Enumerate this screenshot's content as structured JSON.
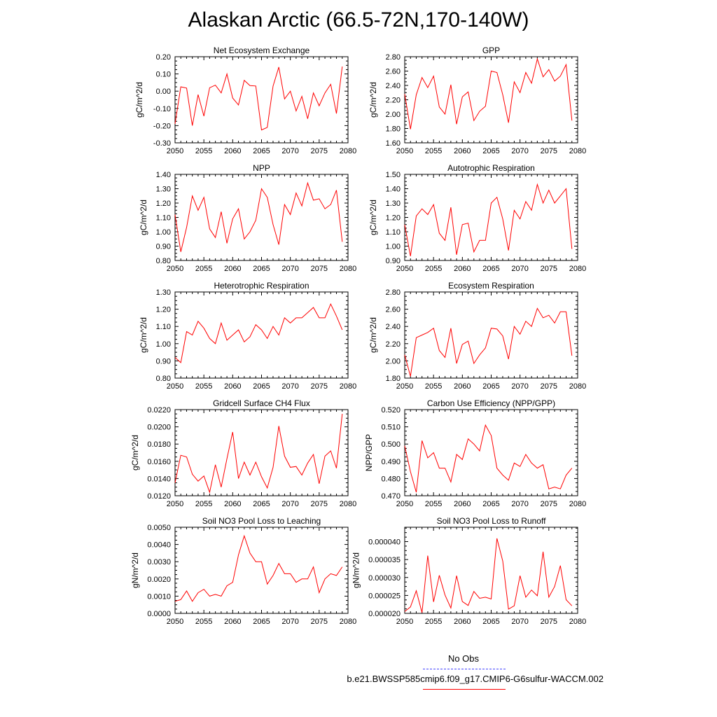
{
  "page_title": "Alaskan Arctic (66.5-72N,170-140W)",
  "legend": {
    "obs_label": "No Obs",
    "obs_color": "#4040ff",
    "case_label": "b.e21.BWSSP585cmip6.f09_g17.CMIP6-G6sulfur-WACCM.002",
    "case_color": "#ff0000"
  },
  "chart_data": [
    {
      "type": "line",
      "title": "Net Ecosystem Exchange",
      "xlabel": "",
      "ylabel": "gC/m^2/d",
      "xlim": [
        2050,
        2080
      ],
      "ylim": [
        -0.3,
        0.2
      ],
      "xticks": [
        "2050",
        "2055",
        "2060",
        "2065",
        "2070",
        "2075",
        "2080"
      ],
      "yticks": [
        "-0.30",
        "-0.20",
        "-0.10",
        "0.00",
        "0.10",
        "0.20"
      ],
      "series": [
        {
          "color": "#ff0000",
          "x": [
            2050,
            2051,
            2052,
            2053,
            2054,
            2055,
            2056,
            2057,
            2058,
            2059,
            2060,
            2061,
            2062,
            2063,
            2064,
            2065,
            2066,
            2067,
            2068,
            2069,
            2070,
            2071,
            2072,
            2073,
            2074,
            2075,
            2076,
            2077,
            2078,
            2079
          ],
          "y": [
            -0.19,
            0.025,
            0.018,
            -0.2,
            -0.02,
            -0.145,
            0.02,
            0.035,
            -0.01,
            0.1,
            -0.04,
            -0.08,
            0.063,
            0.032,
            0.03,
            -0.225,
            -0.21,
            0.03,
            0.14,
            -0.045,
            0.0,
            -0.115,
            -0.03,
            -0.16,
            -0.01,
            -0.085,
            -0.01,
            0.04,
            -0.13,
            0.143
          ]
        }
      ]
    },
    {
      "type": "line",
      "title": "GPP",
      "xlabel": "",
      "ylabel": "gC/m^2/d",
      "xlim": [
        2050,
        2080
      ],
      "ylim": [
        1.6,
        2.8
      ],
      "xticks": [
        "2050",
        "2055",
        "2060",
        "2065",
        "2070",
        "2075",
        "2080"
      ],
      "yticks": [
        "1.60",
        "1.80",
        "2.00",
        "2.20",
        "2.40",
        "2.60",
        "2.80"
      ],
      "series": [
        {
          "color": "#ff0000",
          "x": [
            2050,
            2051,
            2052,
            2053,
            2054,
            2055,
            2056,
            2057,
            2058,
            2059,
            2060,
            2061,
            2062,
            2063,
            2064,
            2065,
            2066,
            2067,
            2068,
            2069,
            2070,
            2071,
            2072,
            2073,
            2074,
            2075,
            2076,
            2077,
            2078,
            2079
          ],
          "y": [
            2.28,
            1.79,
            2.27,
            2.51,
            2.37,
            2.53,
            2.1,
            2.0,
            2.41,
            1.86,
            2.24,
            2.31,
            1.91,
            2.04,
            2.11,
            2.6,
            2.58,
            2.27,
            1.88,
            2.45,
            2.3,
            2.58,
            2.43,
            2.77,
            2.52,
            2.62,
            2.46,
            2.53,
            2.69,
            1.91
          ]
        }
      ]
    },
    {
      "type": "line",
      "title": "NPP",
      "xlabel": "",
      "ylabel": "gC/m^2/d",
      "xlim": [
        2050,
        2080
      ],
      "ylim": [
        0.8,
        1.4
      ],
      "xticks": [
        "2050",
        "2055",
        "2060",
        "2065",
        "2070",
        "2075",
        "2080"
      ],
      "yticks": [
        "0.80",
        "0.90",
        "1.00",
        "1.10",
        "1.20",
        "1.30",
        "1.40"
      ],
      "series": [
        {
          "color": "#ff0000",
          "x": [
            2050,
            2051,
            2052,
            2053,
            2054,
            2055,
            2056,
            2057,
            2058,
            2059,
            2060,
            2061,
            2062,
            2063,
            2064,
            2065,
            2066,
            2067,
            2068,
            2069,
            2070,
            2071,
            2072,
            2073,
            2074,
            2075,
            2076,
            2077,
            2078,
            2079
          ],
          "y": [
            1.12,
            0.86,
            1.03,
            1.25,
            1.15,
            1.24,
            1.02,
            0.96,
            1.14,
            0.92,
            1.09,
            1.16,
            0.95,
            1.0,
            1.08,
            1.3,
            1.24,
            1.05,
            0.91,
            1.19,
            1.12,
            1.27,
            1.18,
            1.34,
            1.22,
            1.23,
            1.16,
            1.19,
            1.29,
            0.93
          ]
        }
      ]
    },
    {
      "type": "line",
      "title": "Autotrophic Respiration",
      "xlabel": "",
      "ylabel": "gC/m^2/d",
      "xlim": [
        2050,
        2080
      ],
      "ylim": [
        0.9,
        1.5
      ],
      "xticks": [
        "2050",
        "2055",
        "2060",
        "2065",
        "2070",
        "2075",
        "2080"
      ],
      "yticks": [
        "0.90",
        "1.00",
        "1.10",
        "1.20",
        "1.30",
        "1.40",
        "1.50"
      ],
      "series": [
        {
          "color": "#ff0000",
          "x": [
            2050,
            2051,
            2052,
            2053,
            2054,
            2055,
            2056,
            2057,
            2058,
            2059,
            2060,
            2061,
            2062,
            2063,
            2064,
            2065,
            2066,
            2067,
            2068,
            2069,
            2070,
            2071,
            2072,
            2073,
            2074,
            2075,
            2076,
            2077,
            2078,
            2079
          ],
          "y": [
            1.15,
            0.93,
            1.21,
            1.26,
            1.22,
            1.29,
            1.09,
            1.04,
            1.27,
            0.94,
            1.15,
            1.16,
            0.96,
            1.04,
            1.04,
            1.3,
            1.34,
            1.19,
            0.97,
            1.25,
            1.19,
            1.31,
            1.25,
            1.43,
            1.3,
            1.39,
            1.3,
            1.35,
            1.4,
            0.98
          ]
        }
      ]
    },
    {
      "type": "line",
      "title": "Heterotrophic Respiration",
      "xlabel": "",
      "ylabel": "gC/m^2/d",
      "xlim": [
        2050,
        2080
      ],
      "ylim": [
        0.8,
        1.3
      ],
      "xticks": [
        "2050",
        "2055",
        "2060",
        "2065",
        "2070",
        "2075",
        "2080"
      ],
      "yticks": [
        "0.80",
        "0.90",
        "1.00",
        "1.10",
        "1.20",
        "1.30"
      ],
      "series": [
        {
          "color": "#ff0000",
          "x": [
            2050,
            2051,
            2052,
            2053,
            2054,
            2055,
            2056,
            2057,
            2058,
            2059,
            2060,
            2061,
            2062,
            2063,
            2064,
            2065,
            2066,
            2067,
            2068,
            2069,
            2070,
            2071,
            2072,
            2073,
            2074,
            2075,
            2076,
            2077,
            2078,
            2079
          ],
          "y": [
            0.92,
            0.89,
            1.07,
            1.05,
            1.13,
            1.09,
            1.03,
            1.0,
            1.12,
            1.02,
            1.05,
            1.08,
            1.01,
            1.04,
            1.11,
            1.08,
            1.03,
            1.1,
            1.05,
            1.15,
            1.12,
            1.15,
            1.15,
            1.18,
            1.21,
            1.15,
            1.15,
            1.23,
            1.16,
            1.08
          ]
        }
      ]
    },
    {
      "type": "line",
      "title": "Ecosystem Respiration",
      "xlabel": "",
      "ylabel": "gC/m^2/d",
      "xlim": [
        2050,
        2080
      ],
      "ylim": [
        1.8,
        2.8
      ],
      "xticks": [
        "2050",
        "2055",
        "2060",
        "2065",
        "2070",
        "2075",
        "2080"
      ],
      "yticks": [
        "1.80",
        "2.00",
        "2.20",
        "2.40",
        "2.60",
        "2.80"
      ],
      "series": [
        {
          "color": "#ff0000",
          "x": [
            2050,
            2051,
            2052,
            2053,
            2054,
            2055,
            2056,
            2057,
            2058,
            2059,
            2060,
            2061,
            2062,
            2063,
            2064,
            2065,
            2066,
            2067,
            2068,
            2069,
            2070,
            2071,
            2072,
            2073,
            2074,
            2075,
            2076,
            2077,
            2078,
            2079
          ],
          "y": [
            2.07,
            1.82,
            2.27,
            2.3,
            2.33,
            2.38,
            2.12,
            2.04,
            2.38,
            1.97,
            2.19,
            2.23,
            1.97,
            2.07,
            2.15,
            2.38,
            2.37,
            2.29,
            2.02,
            2.4,
            2.31,
            2.46,
            2.4,
            2.61,
            2.5,
            2.53,
            2.44,
            2.57,
            2.57,
            2.06
          ]
        }
      ]
    },
    {
      "type": "line",
      "title": "Gridcell Surface CH4 Flux",
      "xlabel": "",
      "ylabel": "gC/m^2/d",
      "xlim": [
        2050,
        2080
      ],
      "ylim": [
        0.012,
        0.022
      ],
      "xticks": [
        "2050",
        "2055",
        "2060",
        "2065",
        "2070",
        "2075",
        "2080"
      ],
      "yticks": [
        "0.0120",
        "0.0140",
        "0.0160",
        "0.0180",
        "0.0200",
        "0.0220"
      ],
      "series": [
        {
          "color": "#ff0000",
          "x": [
            2050,
            2051,
            2052,
            2053,
            2054,
            2055,
            2056,
            2057,
            2058,
            2059,
            2060,
            2061,
            2062,
            2063,
            2064,
            2065,
            2066,
            2067,
            2068,
            2069,
            2070,
            2071,
            2072,
            2073,
            2074,
            2075,
            2076,
            2077,
            2078,
            2079
          ],
          "y": [
            0.0135,
            0.0167,
            0.0165,
            0.0145,
            0.0137,
            0.0143,
            0.0124,
            0.0156,
            0.013,
            0.0163,
            0.0194,
            0.014,
            0.0159,
            0.0144,
            0.0159,
            0.0142,
            0.0129,
            0.0153,
            0.0201,
            0.0166,
            0.0153,
            0.0154,
            0.0144,
            0.0158,
            0.0168,
            0.0134,
            0.0166,
            0.0172,
            0.0152,
            0.0215
          ]
        }
      ]
    },
    {
      "type": "line",
      "title": "Carbon Use Efficiency (NPP/GPP)",
      "xlabel": "",
      "ylabel": "NPP/GPP",
      "xlim": [
        2050,
        2080
      ],
      "ylim": [
        0.47,
        0.52
      ],
      "xticks": [
        "2050",
        "2055",
        "2060",
        "2065",
        "2070",
        "2075",
        "2080"
      ],
      "yticks": [
        "0.470",
        "0.480",
        "0.490",
        "0.500",
        "0.510",
        "0.520"
      ],
      "series": [
        {
          "color": "#ff0000",
          "x": [
            2050,
            2051,
            2052,
            2053,
            2054,
            2055,
            2056,
            2057,
            2058,
            2059,
            2060,
            2061,
            2062,
            2063,
            2064,
            2065,
            2066,
            2067,
            2068,
            2069,
            2070,
            2071,
            2072,
            2073,
            2074,
            2075,
            2076,
            2077,
            2078,
            2079
          ],
          "y": [
            0.499,
            0.484,
            0.472,
            0.502,
            0.492,
            0.495,
            0.486,
            0.486,
            0.478,
            0.494,
            0.491,
            0.503,
            0.5,
            0.496,
            0.511,
            0.505,
            0.486,
            0.482,
            0.479,
            0.489,
            0.487,
            0.494,
            0.489,
            0.486,
            0.488,
            0.474,
            0.475,
            0.474,
            0.482,
            0.486
          ]
        }
      ]
    },
    {
      "type": "line",
      "title": "Soil NO3 Pool Loss to Leaching",
      "xlabel": "",
      "ylabel": "gN/m^2/d",
      "xlim": [
        2050,
        2080
      ],
      "ylim": [
        0.0,
        0.005
      ],
      "xticks": [
        "2050",
        "2055",
        "2060",
        "2065",
        "2070",
        "2075",
        "2080"
      ],
      "yticks": [
        "0.0000",
        "0.0010",
        "0.0020",
        "0.0030",
        "0.0040",
        "0.0050"
      ],
      "series": [
        {
          "color": "#ff0000",
          "x": [
            2050,
            2051,
            2052,
            2053,
            2054,
            2055,
            2056,
            2057,
            2058,
            2059,
            2060,
            2061,
            2062,
            2063,
            2064,
            2065,
            2066,
            2067,
            2068,
            2069,
            2070,
            2071,
            2072,
            2073,
            2074,
            2075,
            2076,
            2077,
            2078,
            2079
          ],
          "y": [
            0.0007,
            0.0008,
            0.0013,
            0.0007,
            0.0012,
            0.0014,
            0.001,
            0.0011,
            0.001,
            0.0016,
            0.0018,
            0.0034,
            0.0045,
            0.0035,
            0.003,
            0.003,
            0.0017,
            0.0022,
            0.0029,
            0.0023,
            0.0023,
            0.0018,
            0.002,
            0.002,
            0.0027,
            0.0012,
            0.002,
            0.0023,
            0.0022,
            0.0027
          ]
        }
      ]
    },
    {
      "type": "line",
      "title": "Soil NO3 Pool Loss to Runoff",
      "xlabel": "",
      "ylabel": "gN/m^2/d",
      "xlim": [
        2050,
        2080
      ],
      "ylim": [
        2e-05,
        4.4e-05
      ],
      "xticks": [
        "2050",
        "2055",
        "2060",
        "2065",
        "2070",
        "2075",
        "2080"
      ],
      "yticks": [
        "0.000020",
        "0.000025",
        "0.000030",
        "0.000035",
        "0.000040"
      ],
      "series": [
        {
          "color": "#ff0000",
          "x": [
            2050,
            2051,
            2052,
            2053,
            2054,
            2055,
            2056,
            2057,
            2058,
            2059,
            2060,
            2061,
            2062,
            2063,
            2064,
            2065,
            2066,
            2067,
            2068,
            2069,
            2070,
            2071,
            2072,
            2073,
            2074,
            2075,
            2076,
            2077,
            2078,
            2079
          ],
          "y": [
            2.05e-05,
            2.18e-05,
            2.63e-05,
            2.02e-05,
            3.61e-05,
            2.32e-05,
            3.06e-05,
            2.51e-05,
            2.15e-05,
            3.05e-05,
            2.33e-05,
            2.22e-05,
            2.61e-05,
            2.42e-05,
            2.45e-05,
            2.4e-05,
            4.09e-05,
            3.46e-05,
            2.12e-05,
            2.21e-05,
            3.05e-05,
            2.45e-05,
            2.65e-05,
            2.49e-05,
            3.72e-05,
            2.45e-05,
            2.75e-05,
            3.33e-05,
            2.38e-05,
            2.21e-05
          ]
        }
      ]
    }
  ]
}
